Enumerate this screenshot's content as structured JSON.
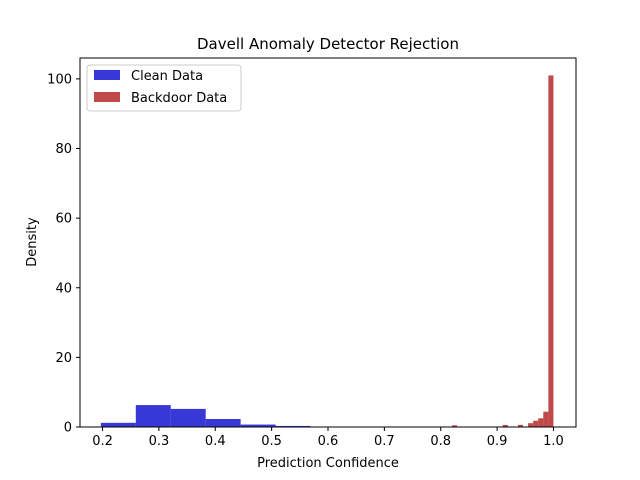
{
  "chart_data": {
    "type": "histogram",
    "title": "Davell Anomaly Detector Rejection",
    "xlabel": "Prediction Confidence",
    "ylabel": "Density",
    "xlim": [
      0.16,
      1.04
    ],
    "ylim": [
      0,
      106
    ],
    "xticks": [
      "0.2",
      "0.3",
      "0.4",
      "0.5",
      "0.6",
      "0.7",
      "0.8",
      "0.9",
      "1.0"
    ],
    "yticks": [
      "0",
      "20",
      "40",
      "60",
      "80",
      "100"
    ],
    "grid": false,
    "legend_position": "top-left",
    "series": [
      {
        "name": "Clean Data",
        "color": "#0000cc",
        "opacity": 0.78,
        "bins": [
          {
            "x0": 0.197,
            "x1": 0.259,
            "value": 1.2
          },
          {
            "x0": 0.259,
            "x1": 0.321,
            "value": 6.3
          },
          {
            "x0": 0.321,
            "x1": 0.383,
            "value": 5.2
          },
          {
            "x0": 0.383,
            "x1": 0.445,
            "value": 2.3
          },
          {
            "x0": 0.445,
            "x1": 0.507,
            "value": 0.7
          },
          {
            "x0": 0.507,
            "x1": 0.569,
            "value": 0.3
          }
        ]
      },
      {
        "name": "Backdoor Data",
        "color": "#b22222",
        "opacity": 0.82,
        "bins": [
          {
            "x0": 0.82,
            "x1": 0.829,
            "value": 0.5
          },
          {
            "x0": 0.91,
            "x1": 0.919,
            "value": 0.6
          },
          {
            "x0": 0.937,
            "x1": 0.946,
            "value": 0.6
          },
          {
            "x0": 0.955,
            "x1": 0.964,
            "value": 1.1
          },
          {
            "x0": 0.964,
            "x1": 0.973,
            "value": 1.8
          },
          {
            "x0": 0.973,
            "x1": 0.982,
            "value": 2.5
          },
          {
            "x0": 0.982,
            "x1": 0.991,
            "value": 4.4
          },
          {
            "x0": 0.991,
            "x1": 1.0,
            "value": 101
          }
        ]
      }
    ]
  }
}
